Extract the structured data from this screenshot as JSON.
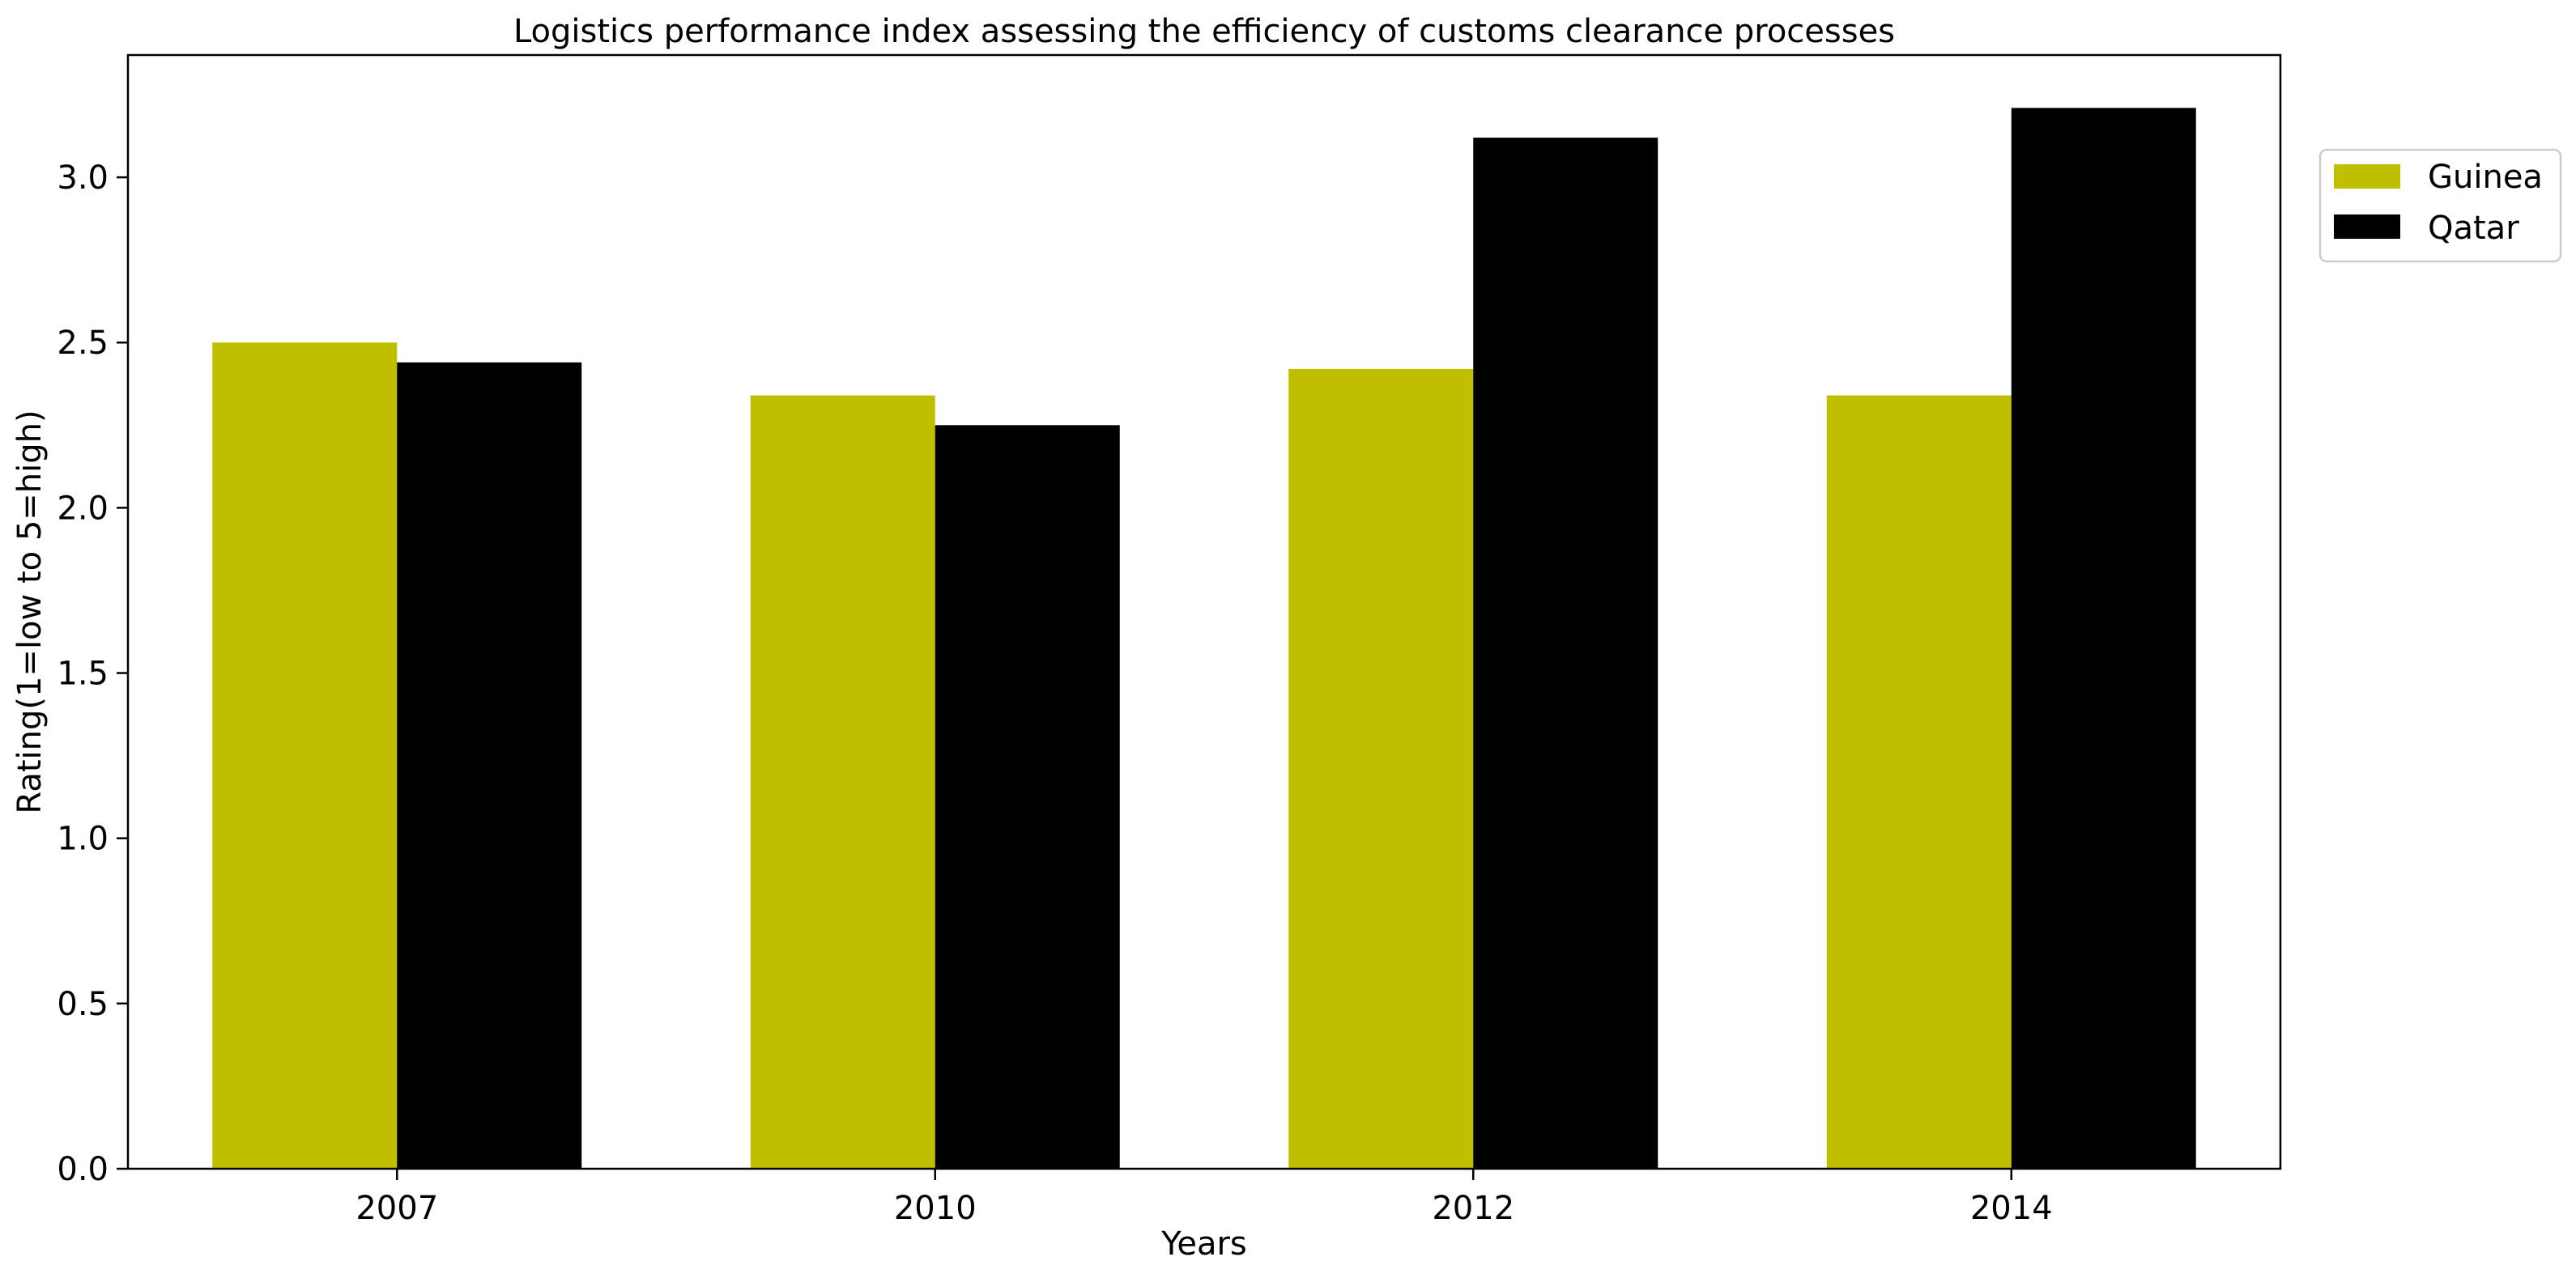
{
  "chart_data": {
    "type": "bar",
    "title": "Logistics performance index assessing the efficiency of customs clearance processes",
    "xlabel": "Years",
    "ylabel": "Rating(1=low to 5=high)",
    "categories": [
      "2007",
      "2010",
      "2012",
      "2014"
    ],
    "series": [
      {
        "name": "Guinea",
        "color": "#bfbf00",
        "values": [
          2.5,
          2.34,
          2.42,
          2.34
        ]
      },
      {
        "name": "Qatar",
        "color": "#000000",
        "values": [
          2.44,
          2.25,
          3.12,
          3.21
        ]
      }
    ],
    "ylim": [
      0,
      3.37
    ],
    "yticks": [
      "0.0",
      "0.5",
      "1.0",
      "1.5",
      "2.0",
      "2.5",
      "3.0"
    ],
    "grid": false,
    "legend_position": "outside-top-right"
  }
}
